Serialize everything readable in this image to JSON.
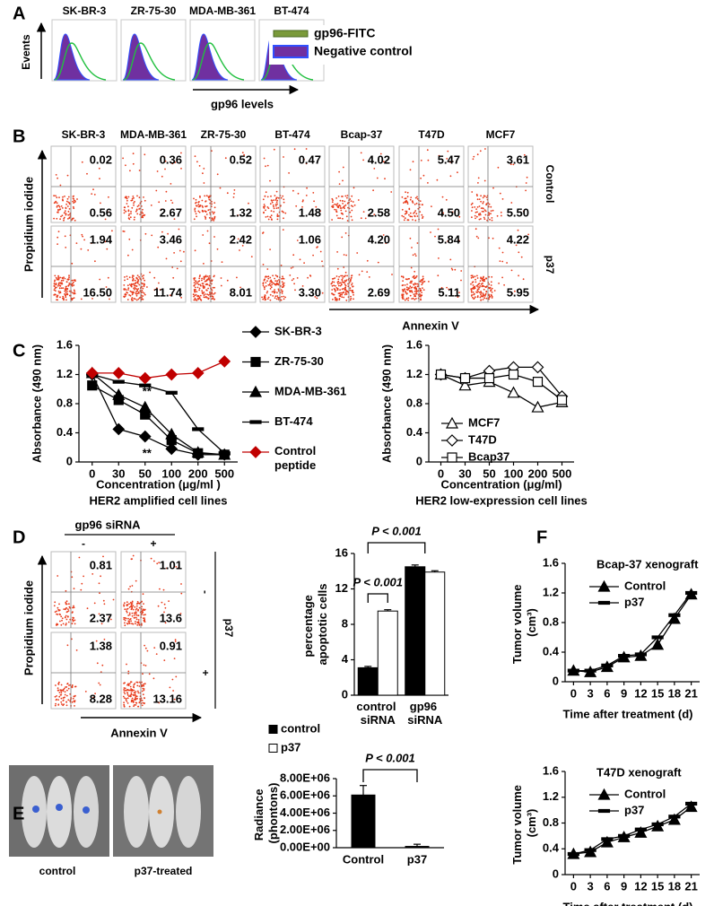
{
  "panels": {
    "A": {
      "label": "A",
      "y_axis": "Events",
      "x_axis": "gp96 levels",
      "cells": [
        "SK-BR-3",
        "ZR-75-30",
        "MDA-MB-361",
        "BT-474"
      ],
      "legend": [
        "gp96-FITC",
        "Negative control"
      ]
    },
    "B": {
      "label": "B",
      "y_axis": "Propidium iodide",
      "x_axis": "Annexin V",
      "cells": [
        "SK-BR-3",
        "MDA-MB-361",
        "ZR-75-30",
        "BT-474",
        "Bcap-37",
        "T47D",
        "MCF7"
      ],
      "rows": [
        "Control",
        "p37"
      ],
      "quadrants": [
        [
          [
            "0.02",
            "0.56"
          ],
          [
            "0.36",
            "2.67"
          ],
          [
            "0.52",
            "1.32"
          ],
          [
            "0.47",
            "1.48"
          ],
          [
            "4.02",
            "2.58"
          ],
          [
            "5.47",
            "4.50"
          ],
          [
            "3.61",
            "5.50"
          ]
        ],
        [
          [
            "1.94",
            "16.50"
          ],
          [
            "3.46",
            "11.74"
          ],
          [
            "2.42",
            "8.01"
          ],
          [
            "1.06",
            "3.30"
          ],
          [
            "4.20",
            "2.69"
          ],
          [
            "5.84",
            "5.11"
          ],
          [
            "4.22",
            "5.95"
          ]
        ]
      ]
    },
    "C": {
      "label": "C"
    },
    "D": {
      "label": "D",
      "header": "gp96 siRNA",
      "columns": [
        "-",
        "+"
      ],
      "rows": [
        "-",
        "+"
      ],
      "row_title": "p37",
      "y_axis": "Propidium iodide",
      "x_axis": "Annexin V",
      "quadrants": [
        [
          [
            "0.81",
            "2.37"
          ],
          [
            "1.01",
            "13.6"
          ]
        ],
        [
          [
            "1.38",
            "8.28"
          ],
          [
            "0.91",
            "13.16"
          ]
        ]
      ]
    },
    "E": {
      "label": "E",
      "images": [
        "control",
        "p37-treated"
      ]
    },
    "F": {
      "label": "F"
    }
  },
  "chart_data": [
    {
      "type": "line",
      "y_label": "Absorbance (490 nm)",
      "x_label": "Concentration (μg/ml )",
      "subtitle": "HER2 amplified cell lines",
      "categories": [
        "0",
        "30",
        "50",
        "100",
        "200",
        "500"
      ],
      "ylim": [
        0,
        1.6
      ],
      "yticks": [
        0,
        0.4,
        0.8,
        1.2,
        1.6
      ],
      "marker_fill": "solid",
      "legend": "right",
      "series": [
        {
          "name": "SK-BR-3",
          "color": "#000000",
          "marker": "diamond",
          "values": [
            1.2,
            0.45,
            0.35,
            0.18,
            0.1,
            0.1
          ]
        },
        {
          "name": "ZR-75-30",
          "color": "#000000",
          "marker": "square",
          "values": [
            1.05,
            0.85,
            0.65,
            0.3,
            0.12,
            0.1
          ]
        },
        {
          "name": "MDA-MB-361",
          "color": "#000000",
          "marker": "triangle",
          "values": [
            1.22,
            0.92,
            0.75,
            0.38,
            0.13,
            0.1
          ]
        },
        {
          "name": "BT-474",
          "color": "#000000",
          "marker": "dash",
          "values": [
            1.2,
            1.1,
            1.05,
            0.95,
            0.45,
            0.12
          ]
        },
        {
          "name": "Control peptide",
          "color": "#c00000",
          "marker": "diamond",
          "values": [
            1.22,
            1.22,
            1.15,
            1.2,
            1.22,
            1.38
          ]
        }
      ],
      "annotations": [
        "**",
        "**",
        "**"
      ]
    },
    {
      "type": "line",
      "y_label": "Absorbance (490 nm)",
      "x_label": "Concentration (μg/ml)",
      "subtitle": "HER2 low-expression cell lines",
      "categories": [
        "0",
        "30",
        "50",
        "100",
        "200",
        "500"
      ],
      "ylim": [
        0,
        1.6
      ],
      "yticks": [
        0,
        0.4,
        0.8,
        1.2,
        1.6
      ],
      "marker_fill": "open",
      "legend": "inside",
      "series": [
        {
          "name": "MCF7",
          "color": "#000000",
          "marker": "triangle",
          "values": [
            1.2,
            1.05,
            1.1,
            0.95,
            0.75,
            0.82
          ]
        },
        {
          "name": "T47D",
          "color": "#000000",
          "marker": "diamond",
          "values": [
            1.2,
            1.15,
            1.25,
            1.3,
            1.3,
            0.9
          ]
        },
        {
          "name": "Bcap37",
          "color": "#000000",
          "marker": "square",
          "values": [
            1.2,
            1.15,
            1.15,
            1.2,
            1.1,
            0.85
          ]
        }
      ]
    },
    {
      "type": "bar",
      "y_label": "percentage apoptotic cells",
      "categories": [
        "control siRNA",
        "gp96 siRNA"
      ],
      "ylim": [
        0,
        16
      ],
      "yticks": [
        0,
        4,
        8,
        12,
        16
      ],
      "legend": "bottom-left",
      "series": [
        {
          "name": "control",
          "color": "#000000",
          "values": [
            3.1,
            14.5
          ],
          "errors": [
            0.15,
            0.2
          ]
        },
        {
          "name": "p37",
          "color": "#ffffff",
          "values": [
            9.5,
            13.9
          ],
          "errors": [
            0.15,
            0.15
          ]
        }
      ],
      "annotations": [
        "P < 0.001",
        "P < 0.001"
      ]
    },
    {
      "type": "bar",
      "y_label": "Radiance (phontons)",
      "categories": [
        "Control",
        "p37"
      ],
      "ylim": [
        0,
        8000000
      ],
      "yticks": [
        {
          "value": 0,
          "label": "0.00E+00"
        },
        {
          "value": 2000000,
          "label": "2.00E+06"
        },
        {
          "value": 4000000,
          "label": "4.00E+06"
        },
        {
          "value": 6000000,
          "label": "6.00E+06"
        },
        {
          "value": 8000000,
          "label": "8.00E+06"
        }
      ],
      "color": "#000000",
      "values": [
        6100000,
        150000
      ],
      "errors": [
        1100000,
        250000
      ],
      "annotations": [
        "P < 0.001"
      ]
    },
    {
      "type": "line",
      "title": "Bcap-37 xenograft",
      "y_label": "Tumor volume (cm³)",
      "x_label": "Time after treatment (d)",
      "x": [
        0,
        3,
        6,
        9,
        12,
        15,
        18,
        21
      ],
      "xlim": [
        -1.5,
        22.5
      ],
      "xticks": [
        0,
        3,
        6,
        9,
        12,
        15,
        18,
        21
      ],
      "ylim": [
        0,
        1.6
      ],
      "yticks": [
        0,
        0.4,
        0.8,
        1.2,
        1.6
      ],
      "marker_fill": "solid",
      "legend": "inside",
      "series": [
        {
          "name": "Control",
          "color": "#000000",
          "marker": "triangle",
          "values": [
            0.15,
            0.13,
            0.2,
            0.33,
            0.35,
            0.5,
            0.85,
            1.18
          ]
        },
        {
          "name": "p37",
          "color": "#000000",
          "marker": "dash",
          "values": [
            0.15,
            0.15,
            0.22,
            0.35,
            0.37,
            0.6,
            0.9,
            1.2
          ]
        }
      ]
    },
    {
      "type": "line",
      "title": "T47D xenograft",
      "y_label": "Tumor volume (cm³)",
      "x_label": "Time after treatment (d)",
      "x": [
        0,
        3,
        6,
        9,
        12,
        15,
        18,
        21
      ],
      "xlim": [
        -1.5,
        22.5
      ],
      "xticks": [
        0,
        3,
        6,
        9,
        12,
        15,
        18,
        21
      ],
      "ylim": [
        0,
        1.6
      ],
      "yticks": [
        0,
        0.4,
        0.8,
        1.2,
        1.6
      ],
      "marker_fill": "solid",
      "legend": "inside",
      "series": [
        {
          "name": "Control",
          "color": "#000000",
          "marker": "triangle",
          "values": [
            0.32,
            0.35,
            0.5,
            0.58,
            0.65,
            0.75,
            0.85,
            1.05
          ]
        },
        {
          "name": "p37",
          "color": "#000000",
          "marker": "dash",
          "values": [
            0.32,
            0.38,
            0.55,
            0.6,
            0.7,
            0.78,
            0.9,
            1.1
          ]
        }
      ]
    }
  ]
}
